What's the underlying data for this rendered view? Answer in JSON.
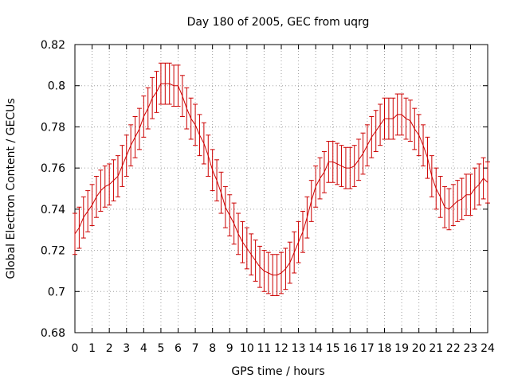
{
  "chart_data": {
    "type": "line",
    "title": "Day 180 of 2005, GEC from uqrg",
    "xlabel": "GPS time / hours",
    "ylabel": "Global Electron Content / GECUs",
    "xlim": [
      0,
      24
    ],
    "ylim": [
      0.68,
      0.82
    ],
    "x_ticks": [
      "0",
      "1",
      "2",
      "3",
      "4",
      "5",
      "6",
      "7",
      "8",
      "9",
      "10",
      "11",
      "12",
      "13",
      "14",
      "15",
      "16",
      "17",
      "18",
      "19",
      "20",
      "21",
      "22",
      "23",
      "24"
    ],
    "y_ticks": [
      "0.68",
      "0.7",
      "0.72",
      "0.74",
      "0.76",
      "0.78",
      "0.8",
      "0.82"
    ],
    "grid": true,
    "line_color": "#cc0000",
    "grid_color": "#a0a0a0",
    "series": [
      {
        "x": [
          0.0,
          0.25,
          0.5,
          0.75,
          1.0,
          1.25,
          1.5,
          1.75,
          2.0,
          2.25,
          2.5,
          2.75,
          3.0,
          3.25,
          3.5,
          3.75,
          4.0,
          4.25,
          4.5,
          4.75,
          5.0,
          5.25,
          5.5,
          5.75,
          6.0,
          6.25,
          6.5,
          6.75,
          7.0,
          7.25,
          7.5,
          7.75,
          8.0,
          8.25,
          8.5,
          8.75,
          9.0,
          9.25,
          9.5,
          9.75,
          10.0,
          10.25,
          10.5,
          10.75,
          11.0,
          11.25,
          11.5,
          11.75,
          12.0,
          12.25,
          12.5,
          12.75,
          13.0,
          13.25,
          13.5,
          13.75,
          14.0,
          14.25,
          14.5,
          14.75,
          15.0,
          15.25,
          15.5,
          15.75,
          16.0,
          16.25,
          16.5,
          16.75,
          17.0,
          17.25,
          17.5,
          17.75,
          18.0,
          18.25,
          18.5,
          18.75,
          19.0,
          19.25,
          19.5,
          19.75,
          20.0,
          20.25,
          20.5,
          20.75,
          21.0,
          21.25,
          21.5,
          21.75,
          22.0,
          22.25,
          22.5,
          22.75,
          23.0,
          23.25,
          23.5,
          23.75,
          24.0
        ],
        "y": [
          0.728,
          0.731,
          0.736,
          0.739,
          0.742,
          0.746,
          0.749,
          0.751,
          0.752,
          0.754,
          0.756,
          0.761,
          0.766,
          0.771,
          0.775,
          0.779,
          0.785,
          0.789,
          0.794,
          0.797,
          0.801,
          0.801,
          0.801,
          0.8,
          0.8,
          0.795,
          0.789,
          0.784,
          0.781,
          0.776,
          0.772,
          0.766,
          0.759,
          0.754,
          0.748,
          0.741,
          0.737,
          0.733,
          0.728,
          0.724,
          0.721,
          0.718,
          0.715,
          0.712,
          0.71,
          0.709,
          0.708,
          0.708,
          0.709,
          0.711,
          0.714,
          0.719,
          0.724,
          0.729,
          0.736,
          0.744,
          0.751,
          0.755,
          0.758,
          0.763,
          0.763,
          0.762,
          0.761,
          0.76,
          0.76,
          0.761,
          0.764,
          0.767,
          0.771,
          0.775,
          0.778,
          0.781,
          0.784,
          0.784,
          0.784,
          0.786,
          0.786,
          0.784,
          0.783,
          0.779,
          0.776,
          0.771,
          0.765,
          0.756,
          0.75,
          0.746,
          0.741,
          0.74,
          0.742,
          0.744,
          0.745,
          0.747,
          0.747,
          0.75,
          0.752,
          0.755,
          0.753
        ],
        "error": 0.01
      }
    ]
  }
}
